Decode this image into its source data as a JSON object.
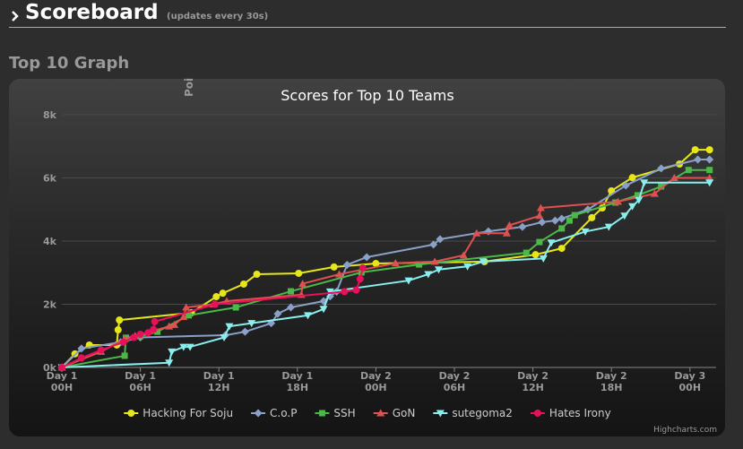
{
  "header": {
    "title": "Scoreboard",
    "subtitle": "(updates every 30s)"
  },
  "section_title": "Top 10 Graph",
  "chart_data": {
    "type": "line",
    "title": "Scores for Top 10 Teams",
    "y_axis_title": "Poi",
    "credit": "Highcharts.com",
    "xlim": [
      0,
      50
    ],
    "xticks": [
      {
        "value": 0,
        "label": "Day 1 00H"
      },
      {
        "value": 6,
        "label": "Day 1 06H"
      },
      {
        "value": 12,
        "label": "Day 1 12H"
      },
      {
        "value": 18,
        "label": "Day 1 18H"
      },
      {
        "value": 24,
        "label": "Day 2 00H"
      },
      {
        "value": 30,
        "label": "Day 2 06H"
      },
      {
        "value": 36,
        "label": "Day 2 12H"
      },
      {
        "value": 42,
        "label": "Day 2 18H"
      },
      {
        "value": 48,
        "label": "Day 3 00H"
      }
    ],
    "ylim": [
      0,
      8000
    ],
    "yticks": [
      {
        "value": 0,
        "label": "0k"
      },
      {
        "value": 2000,
        "label": "2k"
      },
      {
        "value": 4000,
        "label": "4k"
      },
      {
        "value": 6000,
        "label": "6k"
      },
      {
        "value": 8000,
        "label": "8k"
      }
    ],
    "grid": true,
    "legend": "bottom",
    "series": [
      {
        "name": "Hacking For Soju",
        "color": "#e6e619",
        "marker": "circle",
        "x": [
          0,
          1.0,
          2.1,
          4.2,
          4.3,
          4.4,
          9.9,
          11.8,
          12.3,
          13.9,
          14.9,
          18.1,
          20.8,
          24.0,
          32.3,
          36.2,
          38.2,
          40.5,
          41.3,
          42.0,
          43.6,
          47.2,
          48.4,
          49.5
        ],
        "values": [
          0,
          430,
          710,
          710,
          1190,
          1500,
          1730,
          2240,
          2350,
          2640,
          2950,
          2980,
          3180,
          3290,
          3350,
          3570,
          3770,
          4740,
          5050,
          5590,
          6010,
          6440,
          6890,
          6890
        ]
      },
      {
        "name": "C.o.P",
        "color": "#8aa0c8",
        "marker": "diamond",
        "x": [
          0,
          1.5,
          4.5,
          6,
          12.5,
          14,
          16,
          16.5,
          17.5,
          20,
          20.5,
          21,
          21.8,
          23.3,
          28.4,
          28.9,
          32.6,
          35.2,
          36.7,
          37.7,
          38.2,
          40.2,
          43.1,
          45.8,
          48.6,
          49.5
        ],
        "values": [
          0,
          600,
          800,
          950,
          1020,
          1130,
          1400,
          1700,
          1900,
          2100,
          2250,
          2400,
          3250,
          3490,
          3890,
          4060,
          4310,
          4450,
          4600,
          4650,
          4710,
          5000,
          5760,
          6300,
          6580,
          6580
        ]
      },
      {
        "name": "SSH",
        "color": "#4cb848",
        "marker": "square",
        "x": [
          0,
          4.8,
          4.9,
          6,
          7.3,
          9.7,
          13.3,
          17.5,
          22.9,
          27.3,
          35.5,
          36.5,
          38.2,
          38.8,
          39.2,
          42.3,
          44,
          45.8,
          47.9,
          49.5
        ],
        "values": [
          0,
          370,
          940,
          990,
          1130,
          1650,
          1900,
          2410,
          3010,
          3260,
          3630,
          3970,
          4400,
          4650,
          4820,
          5220,
          5450,
          5730,
          6250,
          6250
        ]
      },
      {
        "name": "GoN",
        "color": "#e05050",
        "marker": "triangle",
        "x": [
          0,
          3,
          4.8,
          5.6,
          8.2,
          8.6,
          9.3,
          9.5,
          11.6,
          12.6,
          18.3,
          18.4,
          21.2,
          25.5,
          28.5,
          30.7,
          31.7,
          34,
          34.2,
          36.5,
          36.6,
          42.5,
          45.3,
          46.8,
          49.5
        ],
        "values": [
          0,
          500,
          900,
          1000,
          1300,
          1350,
          1600,
          1900,
          2000,
          2100,
          2300,
          2650,
          2950,
          3300,
          3350,
          3550,
          4250,
          4250,
          4500,
          4800,
          5050,
          5250,
          5500,
          6000,
          6000
        ]
      },
      {
        "name": "sutegoma2",
        "color": "#88eeee",
        "marker": "triangle-down",
        "x": [
          0,
          8.2,
          8.4,
          9.3,
          9.8,
          12.4,
          12.8,
          14.5,
          18.8,
          20,
          20.5,
          26.5,
          28,
          28.8,
          31,
          32.2,
          36.8,
          37.4,
          40,
          41.8,
          43,
          43.6,
          44.1,
          44.5,
          49.5
        ],
        "values": [
          0,
          150,
          500,
          650,
          650,
          950,
          1300,
          1400,
          1650,
          1850,
          2400,
          2750,
          2950,
          3100,
          3200,
          3350,
          3450,
          3950,
          4300,
          4450,
          4800,
          5100,
          5300,
          5850,
          5850
        ]
      },
      {
        "name": "Hates Irony",
        "color": "#e8105a",
        "marker": "circle",
        "x": [
          0,
          1.5,
          3,
          4.7,
          5.5,
          6,
          6.6,
          7,
          7.1,
          11.7,
          21.6,
          22.5,
          22.8,
          23.0
        ],
        "values": [
          0,
          300,
          550,
          800,
          950,
          1050,
          1100,
          1200,
          1450,
          2000,
          2400,
          2450,
          2800,
          3150
        ]
      }
    ]
  }
}
